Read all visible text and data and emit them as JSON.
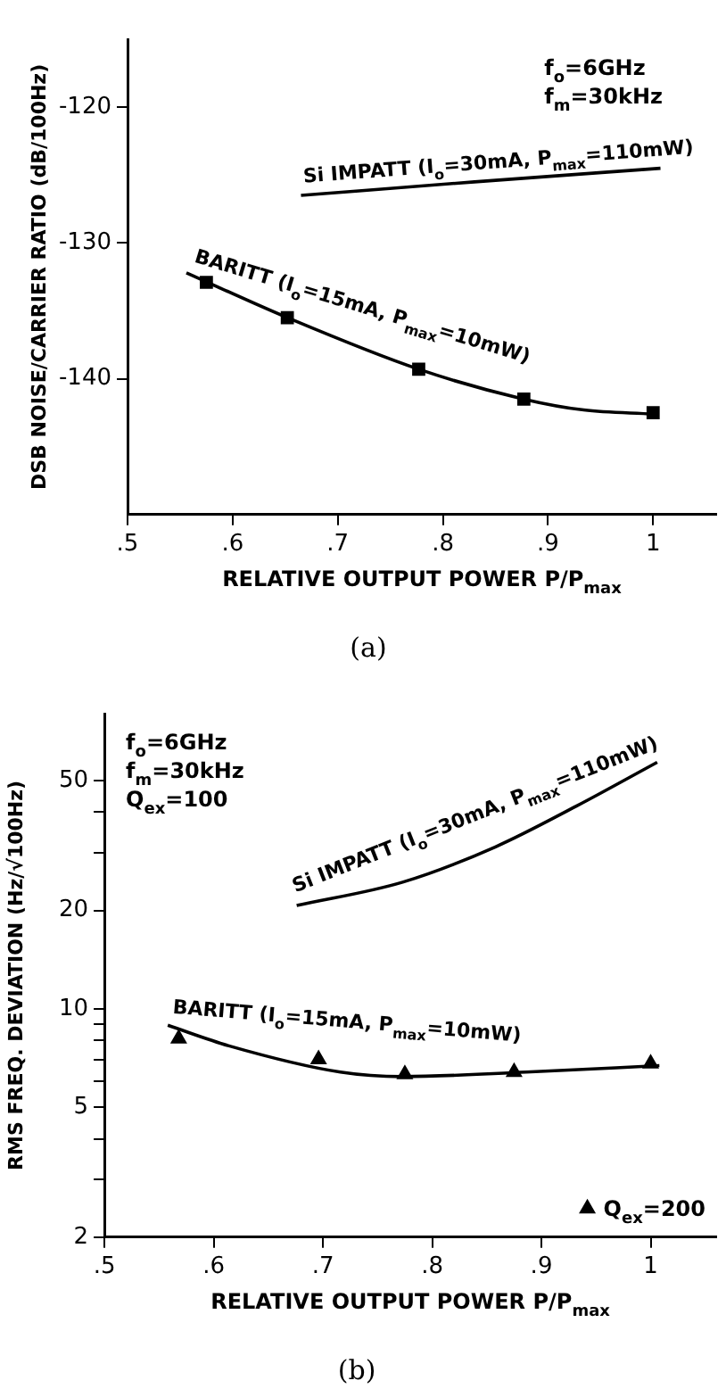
{
  "chart_data": [
    {
      "type": "line",
      "title": "(a)",
      "xlabel": "RELATIVE OUTPUT POWER P/P$_{max}$",
      "ylabel": "DSB NOISE/CARRIER RATIO (dB/100Hz)",
      "xlim": [
        0.5,
        1.06
      ],
      "xticks": [
        {
          "value": 0.5,
          "label": ".5"
        },
        {
          "value": 0.6,
          "label": ".6"
        },
        {
          "value": 0.7,
          "label": ".7"
        },
        {
          "value": 0.8,
          "label": ".8"
        },
        {
          "value": 0.9,
          "label": ".9"
        },
        1
      ],
      "ylim": [
        -150,
        -115
      ],
      "yticks": [
        -120,
        -130,
        -140
      ],
      "grid": false,
      "line_style": "solid",
      "annotations": [
        "f$_{o}$=6GHz",
        "f$_{m}$=30kHz"
      ],
      "series": [
        {
          "name": "Si IMPATT (I$_{o}$=30mA, P$_{max}$=110mW)",
          "color": "#000000",
          "marker": "none",
          "x": [
            0.665,
            0.83,
            1.007
          ],
          "values": [
            -126.5,
            -125.5,
            -124.5
          ]
        },
        {
          "name": "BARITT (I$_{o}$=15mA, P$_{max}$=10mW)",
          "color": "#000000",
          "marker": "none",
          "x": [
            0.556,
            0.652,
            0.777,
            0.877,
            0.934,
            1.0
          ],
          "values": [
            -132.2,
            -135.5,
            -139.3,
            -141.5,
            -142.3,
            -142.6
          ]
        },
        {
          "type": "scatter",
          "color": "#000000",
          "marker": "square",
          "x": [
            0.575,
            0.652,
            0.777,
            0.877,
            1.0
          ],
          "values": [
            -132.9,
            -135.5,
            -139.3,
            -141.5,
            -142.5
          ]
        }
      ]
    },
    {
      "type": "line",
      "title": "(b)",
      "xlabel": "RELATIVE OUTPUT POWER P/P$_{max}$",
      "ylabel": "RMS FREQ. DEVIATION (Hz/√100Hz)",
      "xlim": [
        0.5,
        1.06
      ],
      "xticks": [
        {
          "value": 0.5,
          "label": ".5"
        },
        {
          "value": 0.6,
          "label": ".6"
        },
        {
          "value": 0.7,
          "label": ".7"
        },
        {
          "value": 0.8,
          "label": ".8"
        },
        {
          "value": 0.9,
          "label": ".9"
        },
        1
      ],
      "ylim": [
        2,
        80
      ],
      "yticks": [
        2,
        {
          "value": 3,
          "label": null
        },
        {
          "value": 4,
          "label": null
        },
        5,
        {
          "value": 6,
          "label": null
        },
        {
          "value": 7,
          "label": null
        },
        {
          "value": 8,
          "label": null
        },
        {
          "value": 9,
          "label": null
        },
        10,
        20,
        {
          "value": 30,
          "label": null
        },
        {
          "value": 40,
          "label": null
        },
        50
      ],
      "log": "y",
      "grid": false,
      "line_style": "solid",
      "legend": "bottom right",
      "annotations": [
        "f$_{o}$=6GHz",
        "f$_{m}$=30kHz",
        "Q$_{ex}$=100"
      ],
      "series": [
        {
          "name": "Si IMPATT (I$_{o}$=30mA, P$_{max}$=110mW)",
          "color": "#000000",
          "marker": "none",
          "x": [
            0.676,
            0.773,
            0.858,
            0.932,
            1.006
          ],
          "values": [
            20.7,
            24.4,
            31.3,
            41.7,
            56.8
          ]
        },
        {
          "name": "BARITT (I$_{o}$=15mA, P$_{max}$=10mW)",
          "color": "#000000",
          "marker": "none",
          "x": [
            0.558,
            0.614,
            0.716,
            0.773,
            0.886,
            1.008
          ],
          "values": [
            8.9,
            7.7,
            6.4,
            6.2,
            6.4,
            6.7
          ]
        },
        {
          "name": "Q$_{ex}$=200",
          "type": "scatter",
          "color": "#000000",
          "marker": "triangle",
          "x": [
            0.568,
            0.696,
            0.775,
            0.875,
            1.0
          ],
          "values": [
            8.1,
            7.0,
            6.3,
            6.4,
            6.8
          ]
        }
      ]
    }
  ]
}
